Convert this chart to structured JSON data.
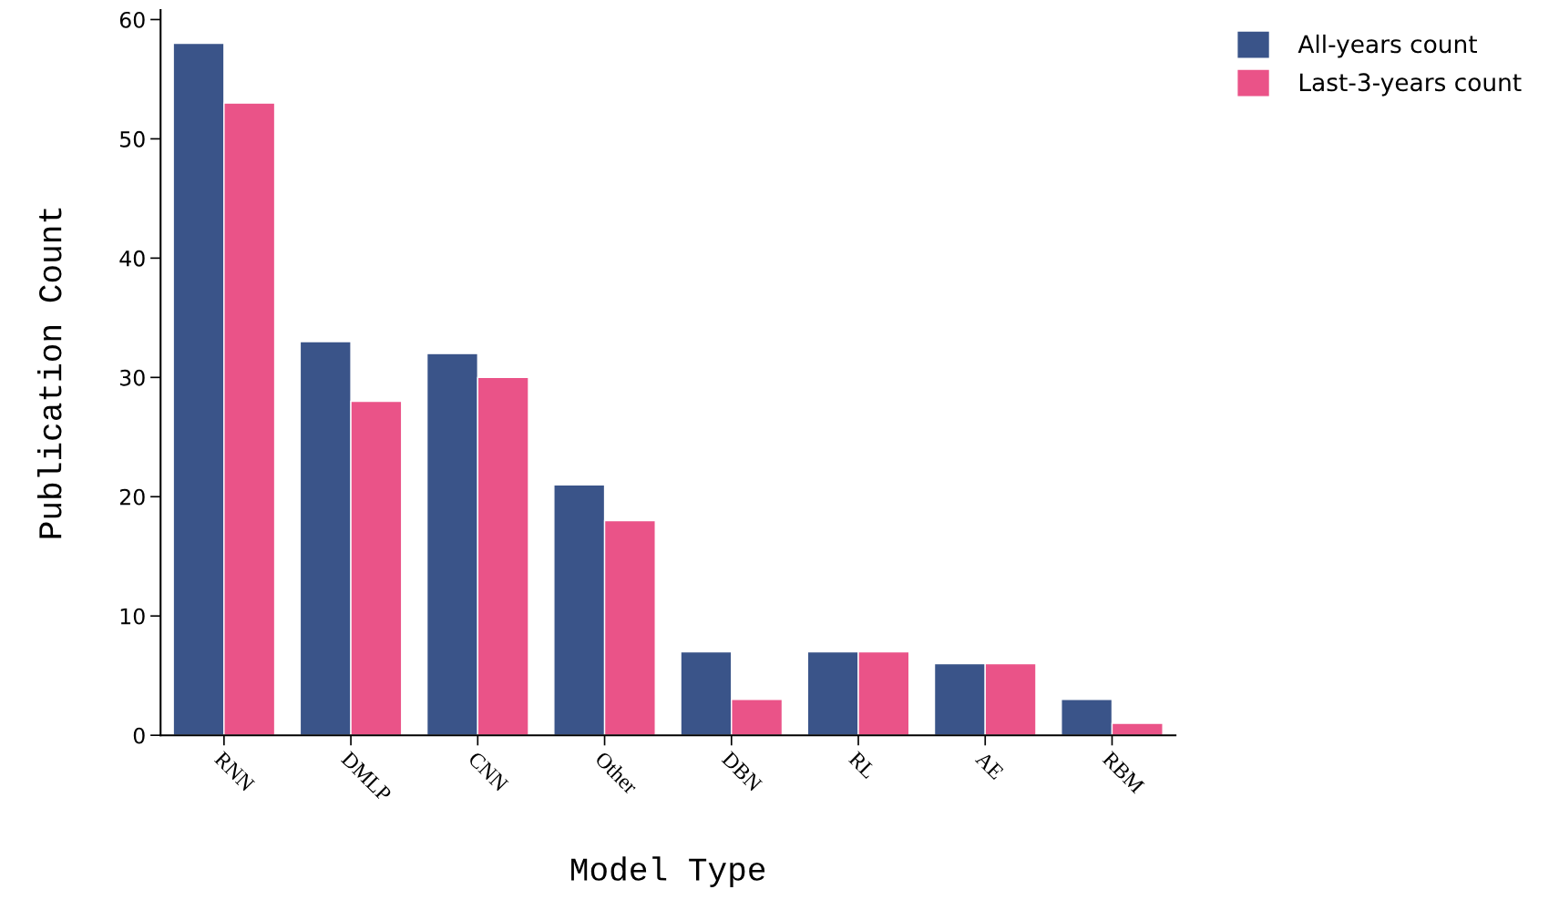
{
  "chart_data": {
    "type": "bar",
    "xlabel": "Model Type",
    "ylabel": "Publication Count",
    "categories": [
      "RNN",
      "DMLP",
      "CNN",
      "Other",
      "DBN",
      "RL",
      "AE",
      "RBM"
    ],
    "series": [
      {
        "name": "All-years count",
        "color": "#3a5489",
        "values": [
          58,
          33,
          32,
          21,
          7,
          7,
          6,
          3
        ]
      },
      {
        "name": "Last-3-years count",
        "color": "#ea5388",
        "values": [
          53,
          28,
          30,
          18,
          3,
          7,
          6,
          1
        ]
      }
    ],
    "ylim": [
      0,
      60.8
    ],
    "yticks": [
      0,
      10,
      20,
      30,
      40,
      50,
      60
    ],
    "grid": false,
    "legend": "top right"
  }
}
